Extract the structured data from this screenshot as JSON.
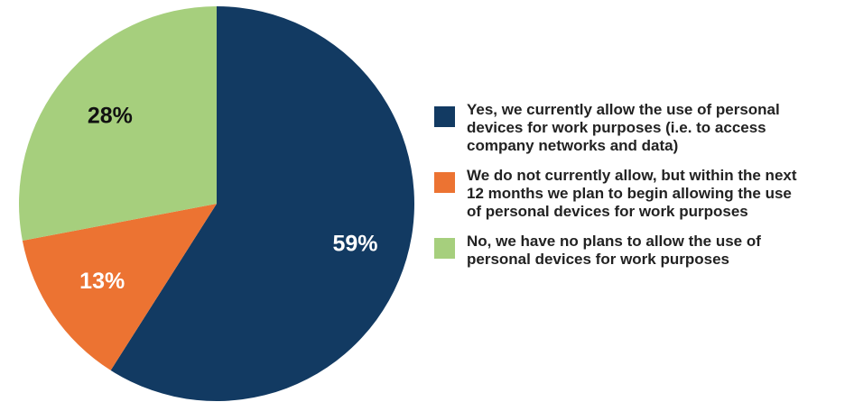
{
  "chart_data": {
    "type": "pie",
    "start_angle_deg": 0,
    "direction": "clockwise",
    "slices": [
      {
        "label": "Yes, we currently allow the use of personal\ndevices for work purposes (i.e. to access\ncompany networks and data)",
        "value": 59,
        "value_label": "59%",
        "color": "#123a62",
        "label_color": "#ffffff"
      },
      {
        "label": "We do not currently allow, but within the next\n12 months we plan to begin allowing the use\nof personal devices for work purposes",
        "value": 13,
        "value_label": "13%",
        "color": "#ec7332",
        "label_color": "#ffffff"
      },
      {
        "label": "No, we have no plans to allow the use of\npersonal devices for work purposes",
        "value": 28,
        "value_label": "28%",
        "color": "#a6cf7d",
        "label_color": "#111111"
      }
    ],
    "legend_position": "right"
  }
}
